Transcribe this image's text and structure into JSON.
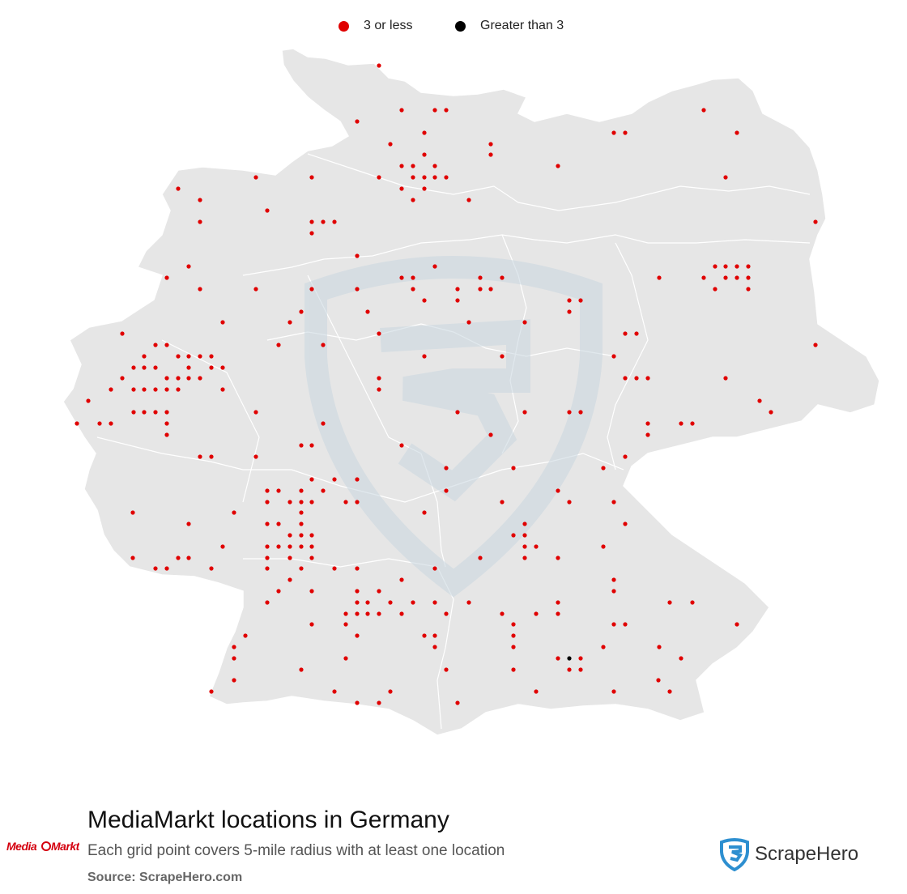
{
  "legend": [
    {
      "label": "3 or less",
      "color": "#e00000"
    },
    {
      "label": "Greater than 3",
      "color": "#000000"
    }
  ],
  "title": "MediaMarkt locations in Germany",
  "subtitle": "Each grid point covers 5-mile radius with at least one location",
  "source": "Source: ScrapeHero.com",
  "brand_logo": "Media Markt",
  "watermark_brand": "ScrapeHero",
  "colors": {
    "land": "#e6e6e6",
    "border": "#ffffff",
    "dot_low": "#e00000",
    "dot_high": "#000000",
    "watermark": "#c9d7e0"
  }
}
